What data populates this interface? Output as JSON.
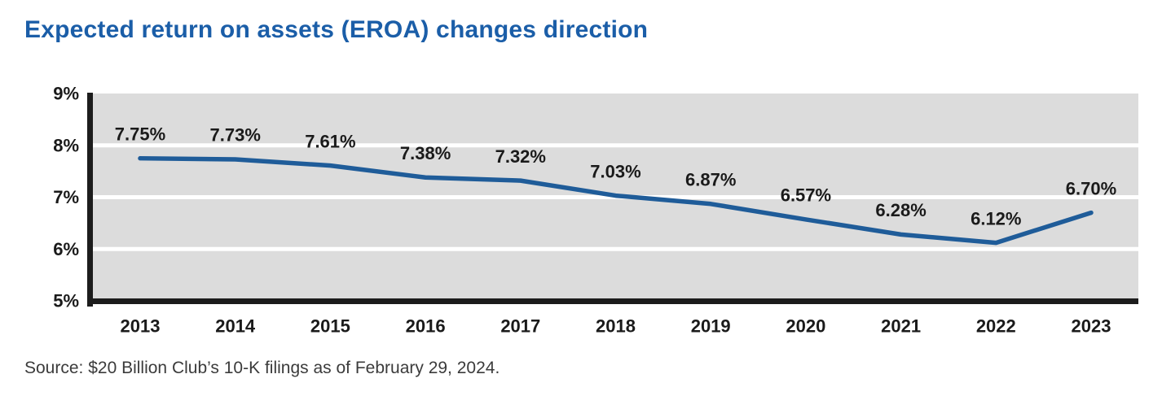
{
  "title": {
    "text": "Expected return on assets (EROA) changes direction",
    "color": "#1B5EA8"
  },
  "source": {
    "text": "Source: $20 Billion Club’s 10-K filings as of February 29, 2024."
  },
  "chart_data": {
    "type": "line",
    "title": "Expected return on assets (EROA) changes direction",
    "categories": [
      "2013",
      "2014",
      "2015",
      "2016",
      "2017",
      "2018",
      "2019",
      "2020",
      "2021",
      "2022",
      "2023"
    ],
    "series": [
      {
        "name": "Expected return on assets (EROA)",
        "values": [
          7.75,
          7.73,
          7.61,
          7.38,
          7.32,
          7.03,
          6.87,
          6.57,
          6.28,
          6.12,
          6.7
        ]
      }
    ],
    "point_labels": [
      "7.75%",
      "7.73%",
      "7.61%",
      "7.38%",
      "7.32%",
      "7.03%",
      "6.87%",
      "6.57%",
      "6.28%",
      "6.12%",
      "6.70%"
    ],
    "xlabel": "",
    "ylabel": "",
    "ylim": [
      5,
      9
    ],
    "ytick_values": [
      5,
      6,
      7,
      8,
      9
    ],
    "ytick_labels": [
      "5%",
      "6%",
      "7%",
      "8%",
      "9%"
    ],
    "grid": "horizontal white gridlines at each 1% step",
    "legend": "none",
    "line_color": "#1F5C99",
    "plot_bg": "#DCDCDC",
    "gridline_color": "#FFFFFF",
    "axis_color": "#1C1C1C",
    "label_color": "#1A1A1A"
  }
}
